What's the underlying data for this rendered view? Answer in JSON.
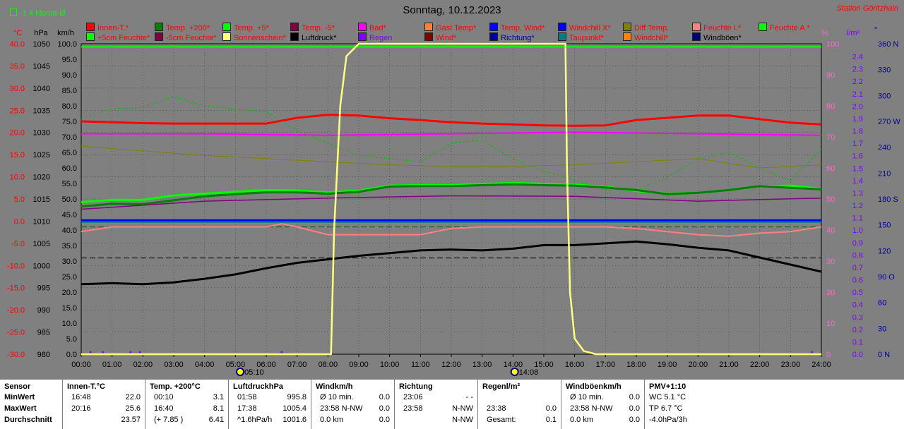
{
  "header": {
    "title": "Sonntag, 10.12.2023",
    "station": "Station Göritzhain",
    "monat_label": "-1.4 Monat-Ø"
  },
  "legend": [
    {
      "label": "Innen-T.*",
      "color": "#ff0000",
      "text_color": "#ff0000"
    },
    {
      "label": "Temp. +200*",
      "color": "#008000",
      "text_color": "#ff0000"
    },
    {
      "label": "Temp. +5*",
      "color": "#00ff00",
      "text_color": "#ff0000"
    },
    {
      "label": "Temp. -5*",
      "color": "#800040",
      "text_color": "#ff0000"
    },
    {
      "label": "Bad*",
      "color": "#ff00ff",
      "text_color": "#ff0000"
    },
    {
      "label": "Gast Temp*",
      "color": "#ff8040",
      "text_color": "#ff0000"
    },
    {
      "label": "Temp. Wind*",
      "color": "#0000ff",
      "text_color": "#ff0000"
    },
    {
      "label": "Windchill X*",
      "color": "#0000ff",
      "text_color": "#ff0000"
    },
    {
      "label": "Diff Temp.",
      "color": "#808000",
      "text_color": "#ff0000"
    },
    {
      "label": "Feuchte I.*",
      "color": "#ff8080",
      "text_color": "#ff0000"
    },
    {
      "label": "Feuchte A.*",
      "color": "#00ff00",
      "text_color": "#ff0000"
    },
    {
      "label": "+5cm Feuchte*",
      "color": "#00ff00",
      "text_color": "#ff0000"
    },
    {
      "label": "-5cm Feuchte*",
      "color": "#800040",
      "text_color": "#ff0000"
    },
    {
      "label": "Sonnenschein*",
      "color": "#ffff80",
      "text_color": "#ff0000"
    },
    {
      "label": "Luftdruck*",
      "color": "#000000",
      "text_color": "#000000"
    },
    {
      "label": "Regen",
      "color": "#8000ff",
      "text_color": "#8000ff"
    },
    {
      "label": "Wind*",
      "color": "#800000",
      "text_color": "#ff0000"
    },
    {
      "label": "Richtung*",
      "color": "#0000a0",
      "text_color": "#0000a0"
    },
    {
      "label": "Taupunkt*",
      "color": "#008080",
      "text_color": "#ff0000"
    },
    {
      "label": "Windchill*",
      "color": "#ff8000",
      "text_color": "#ff0000"
    },
    {
      "label": "Windböen*",
      "color": "#000080",
      "text_color": "#000000"
    }
  ],
  "axes": {
    "temp_unit": "°C",
    "hpa_unit": "hPa",
    "kmh_unit": "km/h",
    "pct_unit": "%",
    "rain_unit": "l/m²",
    "dir_unit": "°",
    "temp_ticks": [
      "40.0",
      "35.0",
      "30.0",
      "25.0",
      "20.0",
      "15.0",
      "10.0",
      "5.0",
      "0.0",
      "-5.0",
      "-10.0",
      "-15.0",
      "-20.0",
      "-25.0",
      "-30.0"
    ],
    "hpa_ticks": [
      "1050",
      "1045",
      "1040",
      "1035",
      "1030",
      "1025",
      "1020",
      "1015",
      "1010",
      "1005",
      "1000",
      "995",
      "990",
      "985",
      "980"
    ],
    "kmh_ticks": [
      "100.0",
      "95.0",
      "90.0",
      "85.0",
      "80.0",
      "75.0",
      "70.0",
      "65.0",
      "60.0",
      "55.0",
      "50.0",
      "45.0",
      "40.0",
      "35.0",
      "30.0",
      "25.0",
      "20.0",
      "15.0",
      "10.0",
      "5.0",
      "0.0"
    ],
    "pct_ticks": [
      "100",
      "90",
      "80",
      "70",
      "60",
      "50",
      "40",
      "30",
      "20",
      "10",
      "0"
    ],
    "rain_ticks": [
      "2.4",
      "2.3",
      "2.2",
      "2.1",
      "2.0",
      "1.9",
      "1.8",
      "1.7",
      "1.6",
      "1.5",
      "1.4",
      "1.3",
      "1.2",
      "1.1",
      "1.0",
      "0.9",
      "0.8",
      "0.7",
      "0.6",
      "0.5",
      "0.4",
      "0.3",
      "0.2",
      "0.1",
      "0.0"
    ],
    "dir_ticks": [
      "360 N",
      "330",
      "300",
      "270 W",
      "240",
      "210",
      "180 S",
      "150",
      "120",
      "90 O",
      "60",
      "30",
      "0 N"
    ],
    "time_ticks": [
      "00:00",
      "01:00",
      "02:00",
      "03:00",
      "04:00",
      "05:00",
      "06:00",
      "07:00",
      "08:00",
      "09:00",
      "10:00",
      "11:00",
      "12:00",
      "13:00",
      "14:00",
      "15:00",
      "16:00",
      "17:00",
      "18:00",
      "19:00",
      "20:00",
      "21:00",
      "22:00",
      "23:00",
      "24:00"
    ],
    "sunrise": "05:10",
    "sunset": "14:08"
  },
  "chart_data": {
    "type": "line",
    "title": "Sonntag, 10.12.2023",
    "x_range": [
      "00:00",
      "24:00"
    ],
    "ylim_temp": [
      -30,
      40
    ],
    "ylim_hpa": [
      980,
      1050
    ],
    "ylim_pct": [
      0,
      100
    ],
    "grid": true,
    "series": [
      {
        "name": "Innen-T.*",
        "color": "#ff0000",
        "axis": "temp",
        "x": [
          0,
          1,
          2,
          3,
          4,
          5,
          6,
          7,
          8,
          9,
          10,
          11,
          12,
          13,
          14,
          15,
          16,
          17,
          18,
          19,
          20,
          21,
          22,
          23,
          24
        ],
        "y": [
          22.5,
          22.3,
          22.1,
          22.0,
          22.0,
          22.0,
          22.0,
          23.3,
          24.0,
          23.8,
          23.2,
          22.8,
          22.3,
          22.0,
          21.8,
          21.6,
          21.5,
          21.6,
          22.8,
          23.3,
          23.8,
          23.8,
          23.0,
          22.2,
          21.8
        ]
      },
      {
        "name": "Feuchte I.*",
        "color": "#ff00ff",
        "axis": "pct",
        "x": [
          0,
          4,
          8,
          12,
          16,
          20,
          24
        ],
        "y": [
          71,
          71,
          70.5,
          71,
          71.5,
          71,
          70.5
        ]
      },
      {
        "name": "Diff Temp.",
        "color": "#808000",
        "axis": "pct",
        "x": [
          0,
          2,
          4,
          6,
          8,
          10,
          12,
          14,
          16,
          18,
          20,
          22,
          24
        ],
        "y": [
          67,
          65.5,
          64,
          63,
          62,
          61,
          60.5,
          60.5,
          61,
          62,
          63,
          60,
          61
        ]
      },
      {
        "name": "Feuchte A.*",
        "color": "#00c000",
        "axis": "pct",
        "dashed": true,
        "x": [
          0,
          1,
          2,
          3,
          4,
          5,
          6,
          7,
          8,
          9,
          10,
          11,
          12,
          13,
          14,
          15,
          16,
          17,
          18,
          19,
          20,
          21,
          22,
          23,
          24
        ],
        "y": [
          76,
          79,
          79.5,
          83,
          80,
          79,
          78,
          72,
          68,
          64,
          63,
          62,
          68,
          69,
          63,
          59,
          56,
          53,
          53,
          57,
          63,
          65,
          60,
          56,
          66
        ]
      },
      {
        "name": "Temp. +5*",
        "color": "#00ff00",
        "axis": "temp",
        "x": [
          0,
          1,
          2,
          3,
          4,
          5,
          6,
          7,
          8,
          9,
          10,
          11,
          12,
          13,
          14,
          15,
          16,
          17,
          18,
          19,
          20,
          21,
          22,
          23,
          24
        ],
        "y": [
          4.3,
          4.8,
          4.8,
          5.8,
          6.2,
          6.6,
          7.0,
          6.9,
          6.5,
          6.9,
          8.0,
          8.1,
          8.1,
          8.4,
          8.6,
          8.4,
          8.2,
          7.8,
          6.8,
          6.2,
          6.4,
          7.0,
          7.9,
          8.0,
          7.3
        ]
      },
      {
        "name": "Temp. +200*",
        "color": "#008000",
        "axis": "temp",
        "x": [
          0,
          1,
          2,
          3,
          4,
          5,
          6,
          7,
          8,
          9,
          10,
          11,
          12,
          13,
          14,
          15,
          16,
          17,
          18,
          19,
          20,
          21,
          22,
          23,
          24
        ],
        "y": [
          3.3,
          3.9,
          3.8,
          4.7,
          5.6,
          6.1,
          6.5,
          6.5,
          6.2,
          6.6,
          7.8,
          7.9,
          7.9,
          8.1,
          8.3,
          8.1,
          8.0,
          7.6,
          7.0,
          6.1,
          6.4,
          7.0,
          7.9,
          7.5,
          7.2
        ]
      },
      {
        "name": "-5cm Feuchte*",
        "color": "#800080",
        "axis": "temp",
        "x": [
          0,
          4,
          8,
          12,
          16,
          20,
          24
        ],
        "y": [
          2.7,
          4.5,
          5.2,
          5.7,
          5.6,
          4.5,
          5.2
        ]
      },
      {
        "name": "Windchill X*",
        "color": "#0000ff",
        "axis": "temp",
        "x": [
          0,
          24
        ],
        "y": [
          0.2,
          0.2
        ]
      },
      {
        "name": "Taupunkt*",
        "color": "#008080",
        "axis": "temp",
        "x": [
          0,
          24
        ],
        "y": [
          -0.2,
          -0.2
        ]
      },
      {
        "name": "Feuchte I. (L)",
        "color": "#ff8080",
        "axis": "pct",
        "x": [
          0,
          1,
          2,
          3,
          4,
          5,
          6,
          6.5,
          7,
          8,
          9,
          10,
          11,
          12,
          13,
          14,
          15,
          16,
          17,
          18,
          19,
          20,
          21,
          22,
          23,
          24
        ],
        "y": [
          39.5,
          41,
          41,
          41,
          41,
          41,
          41,
          42,
          41,
          38.5,
          38.5,
          38.5,
          38.5,
          40.5,
          41,
          41,
          41,
          41,
          41,
          40.5,
          39.5,
          38.5,
          38,
          39,
          39.5,
          41
        ]
      },
      {
        "name": "Luftdruck*",
        "color": "#000000",
        "axis": "hpa",
        "x": [
          0,
          1,
          2,
          3,
          4,
          5,
          6,
          7,
          8,
          9,
          10,
          11,
          12,
          13,
          14,
          15,
          16,
          17,
          18,
          19,
          20,
          21,
          22,
          23,
          24
        ],
        "y": [
          995.8,
          996.0,
          995.8,
          996.2,
          997.0,
          998.0,
          999.4,
          1000.6,
          1001.4,
          1002.2,
          1002.8,
          1003.4,
          1003.6,
          1003.4,
          1003.8,
          1004.6,
          1004.6,
          1005.0,
          1005.4,
          1004.8,
          1004.0,
          1003.4,
          1001.8,
          1000.2,
          998.6
        ]
      },
      {
        "name": "Sonnenschein*",
        "color": "#ffff80",
        "axis": "pct",
        "x": [
          0,
          8.1,
          8.2,
          8.4,
          8.6,
          9,
          10,
          12,
          14,
          15.7,
          15.75,
          15.85,
          16,
          16.3,
          16.7,
          24
        ],
        "y": [
          0,
          0,
          40,
          80,
          96,
          100,
          100,
          100,
          100,
          100,
          60,
          20,
          5,
          1,
          0,
          0
        ]
      }
    ],
    "reference_lines": [
      {
        "name": "kmh-98",
        "axis": "kmh",
        "value": 99,
        "color": "#00ff00"
      },
      {
        "name": "green-dashed",
        "axis": "pct",
        "value": 41,
        "color": "#006000"
      },
      {
        "name": "black-dashed",
        "axis": "pct",
        "value": 31,
        "color": "#000000"
      }
    ]
  },
  "stats": {
    "sensor": {
      "title": "Sensor",
      "rows": [
        "MinWert",
        "MaxWert",
        "Durchschnitt"
      ]
    },
    "innen": {
      "title": "Innen-T.",
      "unit": "°C",
      "rows": [
        [
          "16:48",
          "22.0"
        ],
        [
          "20:16",
          "25.6"
        ],
        [
          "",
          "23.57"
        ]
      ]
    },
    "temp200": {
      "title": "Temp. +200",
      "unit": "°C",
      "rows": [
        [
          "00:10",
          "3.1"
        ],
        [
          "16:40",
          "8.1"
        ],
        [
          "(+ 7.85 )",
          "6.41"
        ]
      ]
    },
    "luftdruck": {
      "title": "Luftdruck",
      "unit": "hPa",
      "rows": [
        [
          "01:58",
          "995.8"
        ],
        [
          "17:38",
          "1005.4"
        ],
        [
          "^1.6hPa/h",
          "1001.6"
        ]
      ]
    },
    "wind": {
      "title": "Wind",
      "unit": "km/h",
      "rows": [
        [
          "Ø 10 min.",
          "0.0"
        ],
        [
          "23:58  N-NW",
          "0.0"
        ],
        [
          "0.0 km",
          "0.0"
        ]
      ]
    },
    "richtung": {
      "title": "Richtung",
      "unit": "",
      "rows": [
        [
          "23:06",
          "- -"
        ],
        [
          "23:58",
          "N-NW"
        ],
        [
          "",
          "N-NW"
        ]
      ]
    },
    "regen": {
      "title": "Regen",
      "unit": "l/m²",
      "rows": [
        [
          "",
          ""
        ],
        [
          "23:38",
          "0.0"
        ],
        [
          "Gesamt:",
          "0.1"
        ]
      ]
    },
    "windboeen": {
      "title": "Windböen",
      "unit": "km/h",
      "rows": [
        [
          "Ø 10 min.",
          "0.0"
        ],
        [
          "23:58  N-NW",
          "0.0"
        ],
        [
          "0.0 km",
          "0.0"
        ]
      ]
    },
    "pmv": {
      "title": "PMV+1:10",
      "rows": [
        "WC 5.1 °C",
        "TP 6.7 °C",
        "-4.0hPa/3h"
      ]
    }
  }
}
